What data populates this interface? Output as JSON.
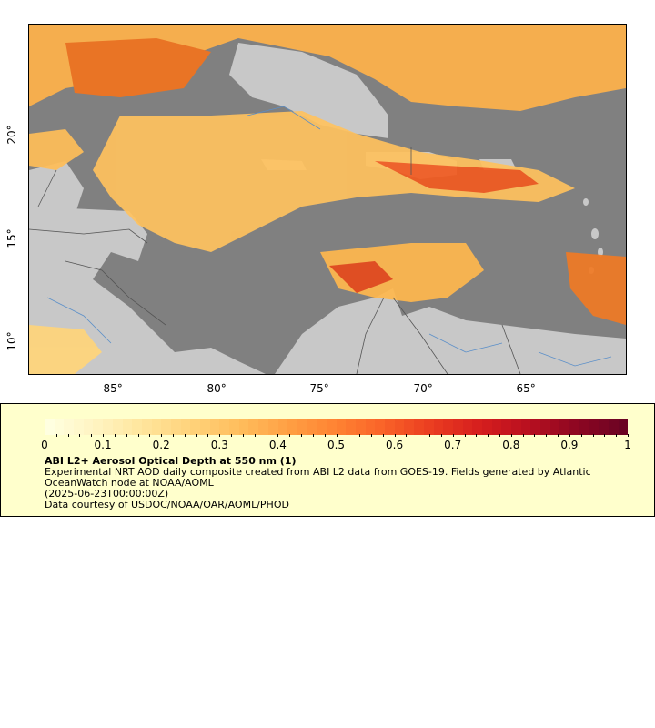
{
  "map": {
    "x_ticks": [
      "-85°",
      "-80°",
      "-75°",
      "-70°",
      "-65°"
    ],
    "y_ticks": [
      "20°",
      "15°",
      "10°"
    ],
    "colors": {
      "ocean": "#808080",
      "land": "#c8c8c8",
      "borders": "#555555",
      "rivers": "#5b8fc9",
      "frame": "#000000"
    }
  },
  "legend": {
    "title": "ABI L2+ Aerosol Optical Depth at 550 nm (1)",
    "description": "Experimental NRT AOD daily composite created from ABI L2 data from GOES-19. Fields generated by Atlantic OceanWatch node at NOAA/AOML",
    "date": "(2025-06-23T00:00:00Z)",
    "credit": "Data courtesy of USDOC/NOAA/OAR/AOML/PHOD",
    "ticks": [
      "0",
      "0.1",
      "0.2",
      "0.3",
      "0.4",
      "0.5",
      "0.6",
      "0.7",
      "0.8",
      "0.9",
      "1"
    ],
    "palette": [
      "#ffffe0",
      "#fff3c0",
      "#ffe49a",
      "#ffd27a",
      "#ffbd5c",
      "#ffa044",
      "#ff8232",
      "#f96228",
      "#ea3c20",
      "#d61e1e",
      "#b9101f",
      "#8f0722",
      "#6b0323"
    ]
  }
}
